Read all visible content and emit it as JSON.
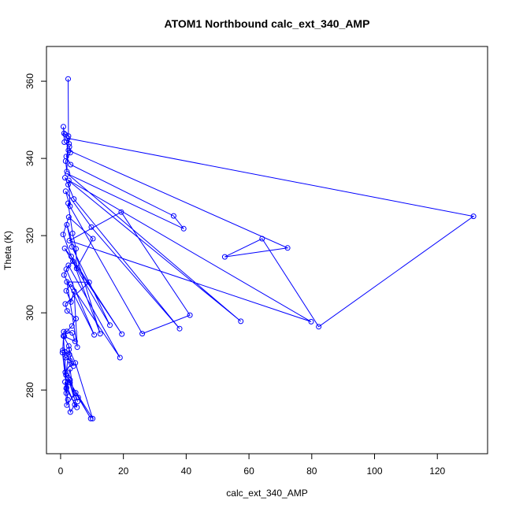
{
  "chart_data": {
    "type": "scatter",
    "title": "ATOM1 Northbound calc_ext_340_AMP",
    "xlabel": "calc_ext_340_AMP",
    "ylabel": "Theta (K)",
    "xlim": [
      -4.5,
      136
    ],
    "ylim": [
      263.5,
      369
    ],
    "xticks": [
      0,
      20,
      40,
      60,
      80,
      100,
      120
    ],
    "yticks": [
      280,
      300,
      320,
      340,
      360
    ],
    "grid": false,
    "legend": "none",
    "color": "#0000ff",
    "series": [
      {
        "style": "line+points",
        "x": [
          2.4,
          2.5,
          2.7,
          1.5,
          1.1,
          0.9,
          1.2,
          2.8,
          3.1,
          1.6,
          2.0,
          2.3,
          131.5,
          82.2,
          64.2,
          52.3,
          72.3,
          2.5,
          1.8,
          3.2,
          36.0,
          39.2,
          2.2,
          57.4,
          1.4,
          2.4,
          4.2,
          37.9,
          9.8,
          1.6,
          3.0,
          2.6,
          79.8,
          2.8,
          19.3,
          41.2,
          26.0,
          2.4,
          3.8,
          4.9,
          5.1,
          10.3,
          2.6,
          0.8,
          12.6,
          2.0,
          3.6,
          15.7,
          1.3,
          3.4,
          19.5,
          3.9,
          1.8,
          10.7,
          1.1,
          2.5,
          18.9,
          3.2,
          1.8,
          3.3,
          4.3,
          5.3,
          2.0,
          9.1,
          1.5,
          2.1,
          4.9,
          3.6,
          2.0,
          1.2,
          4.6,
          3.7,
          1.0,
          0.7,
          2.8,
          1.6,
          3.0,
          4.1,
          1.3,
          1.8,
          3.0,
          4.3,
          2.4,
          1.9,
          0.9,
          2.6,
          3.4,
          1.5,
          0.6,
          2.3,
          3.1,
          4.5,
          1.4,
          2.0,
          4.8,
          5.6,
          9.6,
          1.7,
          2.7,
          4.7,
          10.2,
          3.0,
          5.2,
          1.8,
          3.0,
          5.4
        ],
        "y": [
          360.6,
          345.8,
          343.8,
          346.2,
          346.5,
          348.2,
          344.2,
          343.0,
          341.5,
          339.3,
          336.6,
          345.2,
          325.0,
          296.4,
          319.2,
          314.5,
          316.8,
          342.1,
          340.5,
          338.4,
          325.1,
          321.8,
          336.0,
          297.8,
          335.0,
          333.2,
          329.5,
          295.9,
          322.2,
          331.5,
          327.6,
          334.3,
          297.7,
          318.7,
          326.1,
          299.4,
          294.6,
          328.4,
          320.6,
          316.6,
          311.5,
          319.2,
          324.8,
          320.3,
          294.6,
          322.8,
          317.1,
          296.8,
          316.7,
          314.6,
          294.5,
          313.4,
          311.3,
          294.3,
          309.8,
          312.3,
          288.4,
          307.4,
          305.7,
          302.8,
          305.6,
          291.1,
          308.0,
          307.9,
          302.3,
          300.5,
          298.5,
          296.6,
          295.2,
          293.9,
          292.6,
          294.8,
          295.1,
          290.3,
          289.2,
          288.4,
          287.6,
          286.2,
          289.9,
          279.2,
          285.5,
          277.9,
          283.2,
          280.6,
          294.0,
          291.4,
          286.9,
          284.6,
          289.7,
          277.5,
          274.3,
          276.2,
          282.1,
          276.1,
          279.3,
          278.1,
          272.6,
          283.9,
          290.5,
          287.0,
          272.6,
          281.9,
          275.5,
          280.4,
          282.6,
          277.0
        ]
      }
    ]
  }
}
